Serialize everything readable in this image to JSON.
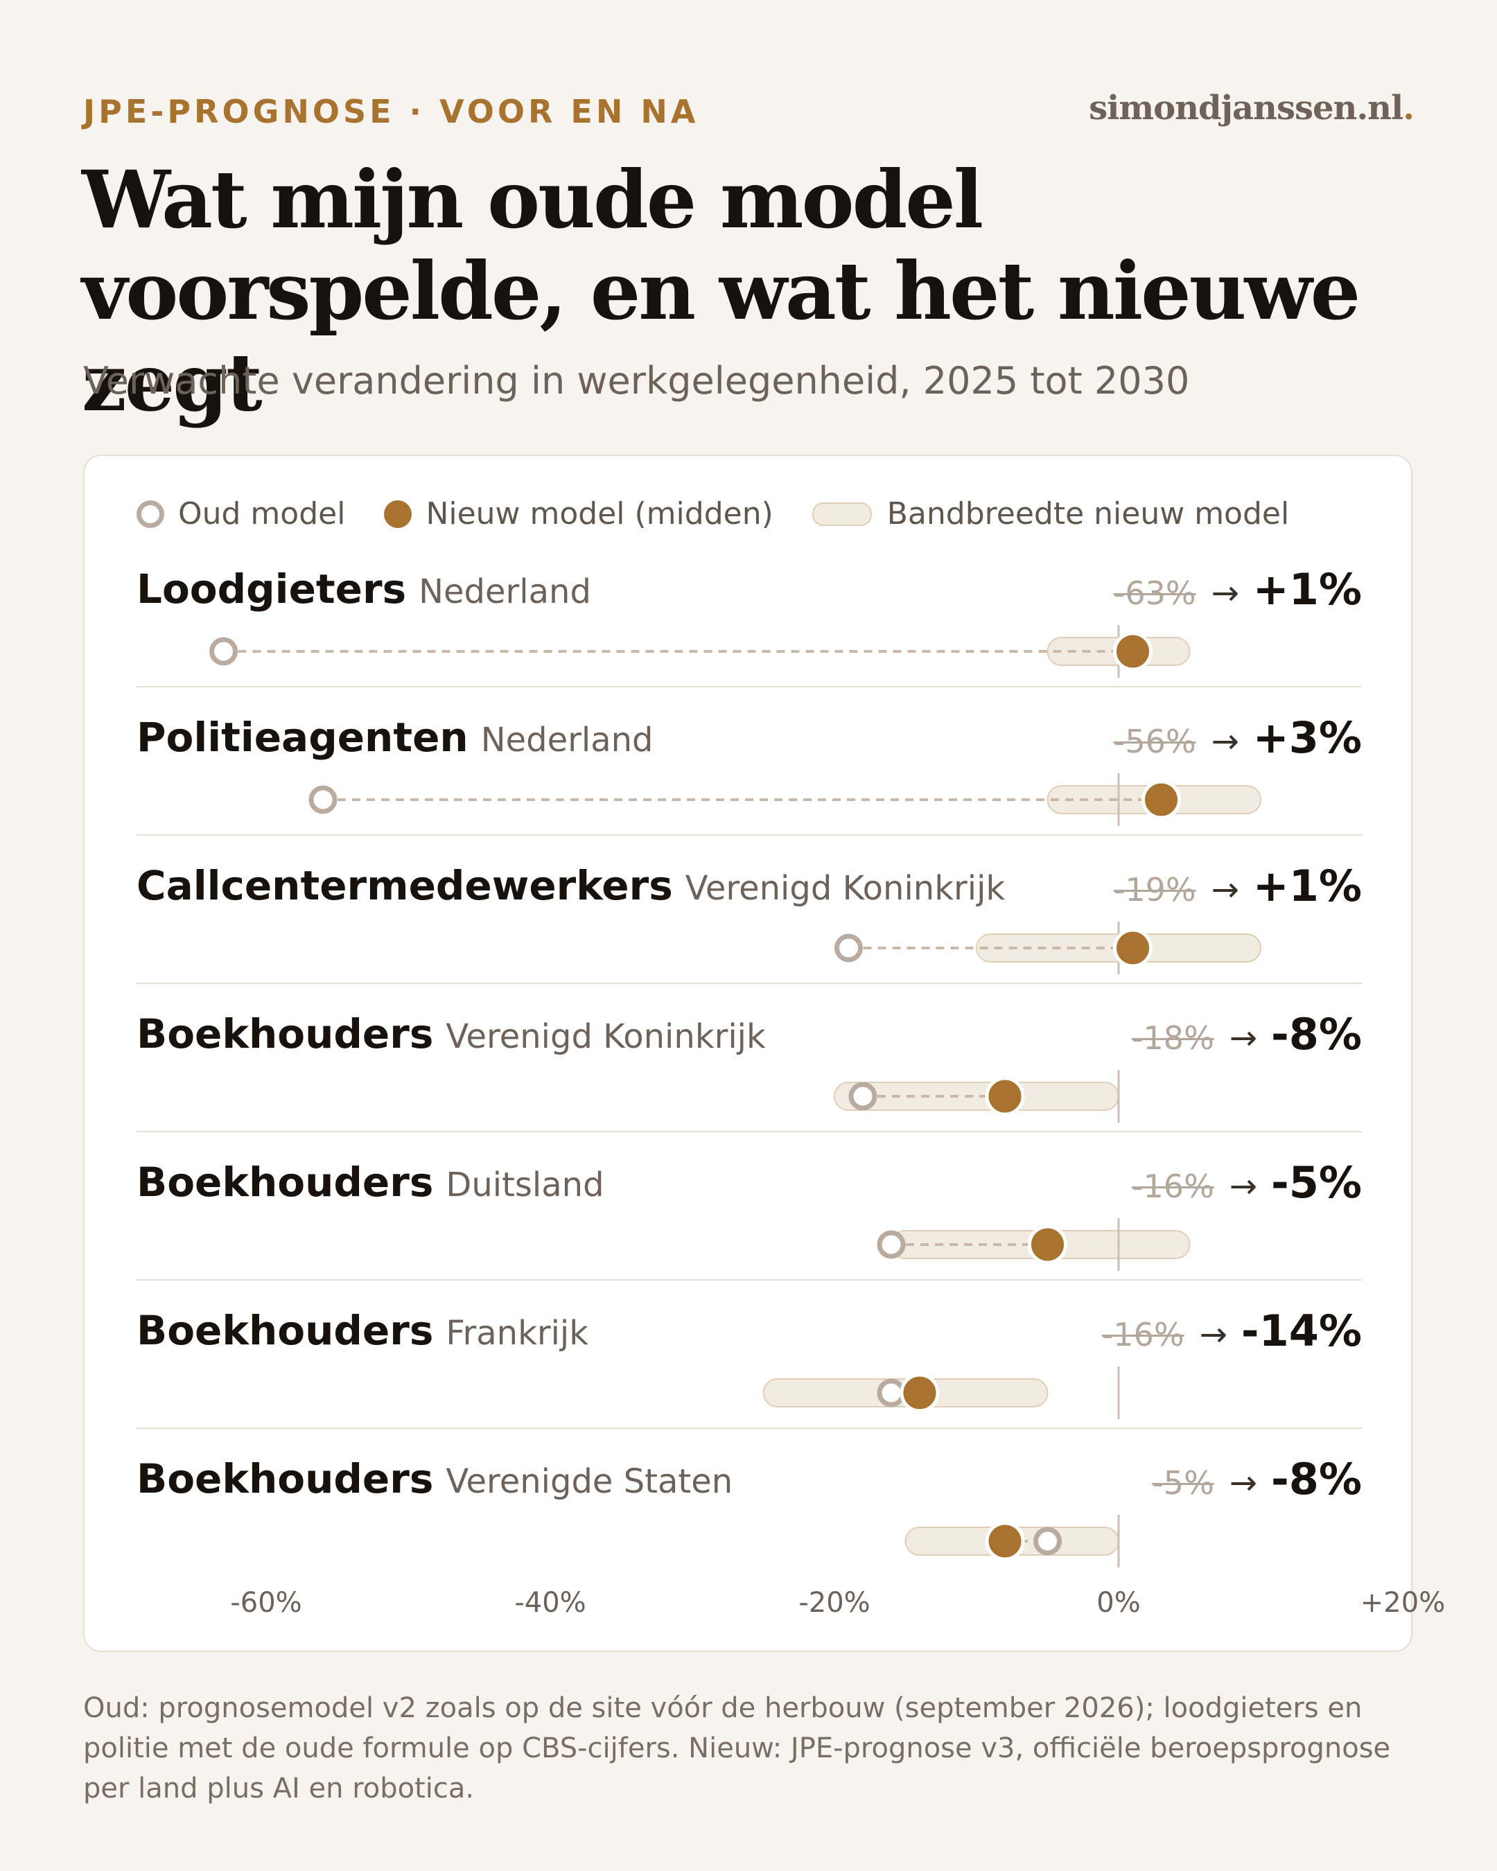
{
  "header": {
    "kicker": "JPE-PROGNOSE · VOOR EN NA",
    "brand": "simondjanssen.nl",
    "brand_dot": ".",
    "title": "Wat mijn oude model voorspelde, en wat het nieuwe zegt",
    "subtitle": "Verwachte verandering in werkgelegenheid, 2025 tot 2030"
  },
  "legend": {
    "old": "Oud model",
    "new": "Nieuw model (midden)",
    "band": "Bandbreedte nieuw model"
  },
  "colors": {
    "background": "#f7f4ef",
    "accent": "#a8722f",
    "old_marker": "#b9aba0",
    "band_fill": "#f2ebe1",
    "band_stroke": "#e0cfb8",
    "zero_line": "#cbbfb3"
  },
  "chart_data": {
    "type": "dot-range",
    "xlim": [
      -70,
      20
    ],
    "x_ticks": [
      "-60%",
      "-40%",
      "-20%",
      "0%",
      "+20%"
    ],
    "x_tick_values": [
      -60,
      -40,
      -20,
      0,
      20
    ],
    "rows": [
      {
        "name": "Loodgieters",
        "region": "Nederland",
        "old": -63,
        "new": 1,
        "band": [
          -5,
          5
        ],
        "old_label": "-63%",
        "new_label": "+1%"
      },
      {
        "name": "Politieagenten",
        "region": "Nederland",
        "old": -56,
        "new": 3,
        "band": [
          -5,
          10
        ],
        "old_label": "-56%",
        "new_label": "+3%"
      },
      {
        "name": "Callcentermedewerkers",
        "region": "Verenigd Koninkrijk",
        "old": -19,
        "new": 1,
        "band": [
          -10,
          10
        ],
        "old_label": "-19%",
        "new_label": "+1%"
      },
      {
        "name": "Boekhouders",
        "region": "Verenigd Koninkrijk",
        "old": -18,
        "new": -8,
        "band": [
          -20,
          0
        ],
        "old_label": "-18%",
        "new_label": "-8%"
      },
      {
        "name": "Boekhouders",
        "region": "Duitsland",
        "old": -16,
        "new": -5,
        "band": [
          -16,
          5
        ],
        "old_label": "-16%",
        "new_label": "-5%"
      },
      {
        "name": "Boekhouders",
        "region": "Frankrijk",
        "old": -16,
        "new": -14,
        "band": [
          -25,
          -5
        ],
        "old_label": "-16%",
        "new_label": "-14%"
      },
      {
        "name": "Boekhouders",
        "region": "Verenigde Staten",
        "old": -5,
        "new": -8,
        "band": [
          -15,
          0
        ],
        "old_label": "-5%",
        "new_label": "-8%"
      }
    ]
  },
  "arrow": "→",
  "footnote": "Oud: prognosemodel v2 zoals op de site vóór de herbouw (september 2026); loodgieters en politie met de oude formule op CBS-cijfers. Nieuw: JPE-prognose v3, officiële beroepsprognose per land plus AI en robotica."
}
